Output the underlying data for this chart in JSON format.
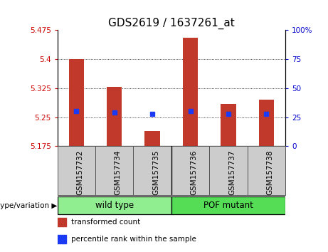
{
  "title": "GDS2619 / 1637261_at",
  "samples": [
    "GSM157732",
    "GSM157734",
    "GSM157735",
    "GSM157736",
    "GSM157737",
    "GSM157738"
  ],
  "bar_values": [
    5.4,
    5.328,
    5.215,
    5.455,
    5.285,
    5.295
  ],
  "percentile_values": [
    5.265,
    5.263,
    5.258,
    5.265,
    5.258,
    5.258
  ],
  "ymin": 5.175,
  "ymax": 5.475,
  "yticks_left": [
    5.175,
    5.25,
    5.325,
    5.4,
    5.475
  ],
  "yticks_right_vals": [
    0,
    25,
    50,
    75,
    100
  ],
  "yticks_right_labels": [
    "0",
    "25",
    "50",
    "75",
    "100%"
  ],
  "bar_color": "#c0392b",
  "dot_color": "#1a3af5",
  "grid_color": "#000000",
  "group_labels": [
    "wild type",
    "POF mutant"
  ],
  "group_ranges": [
    [
      0,
      3
    ],
    [
      3,
      6
    ]
  ],
  "group_colors": [
    "#90ee90",
    "#55dd55"
  ],
  "genotype_label": "genotype/variation",
  "legend_items": [
    {
      "label": "transformed count",
      "color": "#c0392b"
    },
    {
      "label": "percentile rank within the sample",
      "color": "#1a3af5"
    }
  ],
  "left_axis_color": "#cc0000",
  "right_axis_color": "#0000cc",
  "title_fontsize": 11,
  "tick_fontsize": 7.5,
  "bar_width": 0.4,
  "xtick_bg_color": "#cccccc",
  "xtick_border_color": "#555555"
}
